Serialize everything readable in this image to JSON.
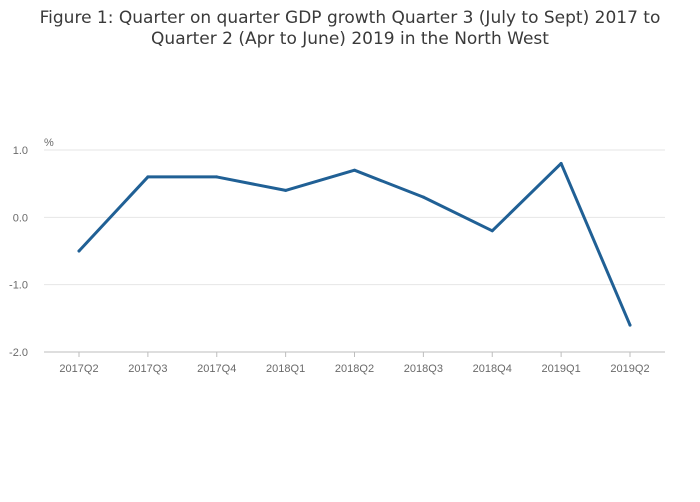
{
  "chart_data": {
    "type": "line",
    "title_lines": [
      "Figure 1: Quarter on quarter GDP growth Quarter 3 (July to Sept) 2017 to",
      "Quarter 2 (Apr to June) 2019 in the North West"
    ],
    "y_unit": "%",
    "categories": [
      "2017Q2",
      "2017Q3",
      "2017Q4",
      "2018Q1",
      "2018Q2",
      "2018Q3",
      "2018Q4",
      "2019Q1",
      "2019Q2"
    ],
    "series": [
      {
        "values": [
          -0.5,
          0.6,
          0.6,
          0.4,
          0.7,
          0.3,
          -0.2,
          0.8,
          -1.6
        ]
      }
    ],
    "y_ticks": [
      1.0,
      0.0,
      -1.0,
      -2.0
    ],
    "y_tick_labels": [
      "1.0",
      "0.0",
      "-1.0",
      "-2.0"
    ],
    "ylim": [
      -2.0,
      1.0
    ],
    "grid": true,
    "legend": "none",
    "colors": {
      "line": "#206095",
      "grid": "#e6e6e6",
      "axis": "#bdbdbd",
      "text": "#6a6a6a",
      "title": "#3a3a3a"
    }
  }
}
